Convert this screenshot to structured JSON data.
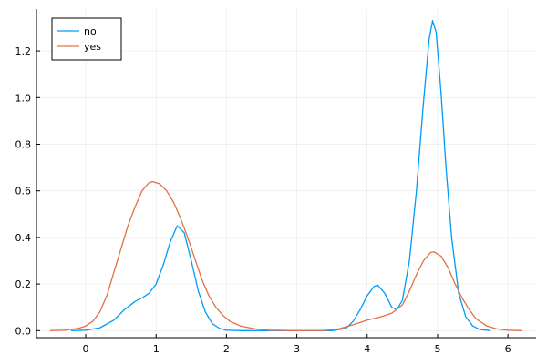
{
  "chart_data": {
    "type": "line",
    "title": "",
    "xlabel": "",
    "ylabel": "",
    "xlim": [
      -0.7,
      6.4
    ],
    "ylim": [
      -0.03,
      1.38
    ],
    "x_ticks": [
      0,
      1,
      2,
      3,
      4,
      5,
      6
    ],
    "y_ticks": [
      0.0,
      0.2,
      0.4,
      0.6,
      0.8,
      1.0,
      1.2
    ],
    "x_tick_labels": [
      "0",
      "1",
      "2",
      "3",
      "4",
      "5",
      "6"
    ],
    "y_tick_labels": [
      "0.0",
      "0.2",
      "0.4",
      "0.6",
      "0.8",
      "1.0",
      "1.2"
    ],
    "grid": true,
    "legend": {
      "position": "top-left"
    },
    "series": [
      {
        "name": "no",
        "color": "#009af9",
        "points": [
          [
            -0.2,
            0.0
          ],
          [
            0.0,
            0.002
          ],
          [
            0.2,
            0.012
          ],
          [
            0.4,
            0.045
          ],
          [
            0.55,
            0.09
          ],
          [
            0.7,
            0.125
          ],
          [
            0.8,
            0.14
          ],
          [
            0.9,
            0.16
          ],
          [
            1.0,
            0.2
          ],
          [
            1.1,
            0.28
          ],
          [
            1.2,
            0.38
          ],
          [
            1.3,
            0.45
          ],
          [
            1.4,
            0.42
          ],
          [
            1.5,
            0.3
          ],
          [
            1.6,
            0.17
          ],
          [
            1.7,
            0.08
          ],
          [
            1.8,
            0.03
          ],
          [
            1.9,
            0.01
          ],
          [
            2.0,
            0.002
          ],
          [
            2.2,
            0.0
          ],
          [
            3.0,
            0.0
          ],
          [
            3.5,
            0.0
          ],
          [
            3.7,
            0.01
          ],
          [
            3.8,
            0.04
          ],
          [
            3.9,
            0.09
          ],
          [
            4.0,
            0.15
          ],
          [
            4.1,
            0.19
          ],
          [
            4.15,
            0.195
          ],
          [
            4.25,
            0.16
          ],
          [
            4.35,
            0.1
          ],
          [
            4.42,
            0.09
          ],
          [
            4.5,
            0.13
          ],
          [
            4.6,
            0.3
          ],
          [
            4.7,
            0.6
          ],
          [
            4.8,
            0.98
          ],
          [
            4.88,
            1.25
          ],
          [
            4.93,
            1.33
          ],
          [
            4.98,
            1.28
          ],
          [
            5.05,
            1.02
          ],
          [
            5.12,
            0.7
          ],
          [
            5.2,
            0.4
          ],
          [
            5.3,
            0.16
          ],
          [
            5.4,
            0.06
          ],
          [
            5.5,
            0.02
          ],
          [
            5.6,
            0.005
          ],
          [
            5.75,
            0.0
          ]
        ]
      },
      {
        "name": "yes",
        "color": "#e26f46",
        "points": [
          [
            -0.5,
            0.0
          ],
          [
            -0.3,
            0.002
          ],
          [
            -0.1,
            0.01
          ],
          [
            0.0,
            0.02
          ],
          [
            0.1,
            0.04
          ],
          [
            0.2,
            0.08
          ],
          [
            0.3,
            0.15
          ],
          [
            0.4,
            0.25
          ],
          [
            0.5,
            0.35
          ],
          [
            0.6,
            0.45
          ],
          [
            0.7,
            0.53
          ],
          [
            0.8,
            0.6
          ],
          [
            0.9,
            0.635
          ],
          [
            0.95,
            0.64
          ],
          [
            1.05,
            0.63
          ],
          [
            1.15,
            0.6
          ],
          [
            1.25,
            0.55
          ],
          [
            1.35,
            0.48
          ],
          [
            1.45,
            0.4
          ],
          [
            1.55,
            0.31
          ],
          [
            1.65,
            0.22
          ],
          [
            1.75,
            0.15
          ],
          [
            1.85,
            0.1
          ],
          [
            1.95,
            0.065
          ],
          [
            2.05,
            0.04
          ],
          [
            2.2,
            0.02
          ],
          [
            2.4,
            0.008
          ],
          [
            2.6,
            0.002
          ],
          [
            3.0,
            0.0
          ],
          [
            3.4,
            0.001
          ],
          [
            3.6,
            0.008
          ],
          [
            3.8,
            0.025
          ],
          [
            4.0,
            0.045
          ],
          [
            4.2,
            0.06
          ],
          [
            4.35,
            0.075
          ],
          [
            4.5,
            0.11
          ],
          [
            4.6,
            0.17
          ],
          [
            4.7,
            0.24
          ],
          [
            4.8,
            0.3
          ],
          [
            4.9,
            0.335
          ],
          [
            4.95,
            0.338
          ],
          [
            5.05,
            0.32
          ],
          [
            5.15,
            0.27
          ],
          [
            5.25,
            0.2
          ],
          [
            5.35,
            0.14
          ],
          [
            5.45,
            0.09
          ],
          [
            5.55,
            0.05
          ],
          [
            5.7,
            0.02
          ],
          [
            5.85,
            0.007
          ],
          [
            6.0,
            0.002
          ],
          [
            6.2,
            0.0
          ]
        ]
      }
    ]
  }
}
